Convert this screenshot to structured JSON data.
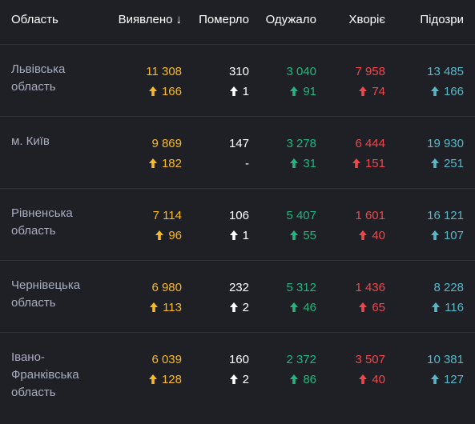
{
  "header": {
    "region": "Область",
    "detected": "Виявлено",
    "died": "Померло",
    "recovered": "Одужало",
    "sick": "Хворіє",
    "suspected": "Підозри"
  },
  "colors": {
    "detected": "#f7b924",
    "died": "#ffffff",
    "recovered": "#25b47e",
    "sick": "#f0474b",
    "suspected": "#58b7c7",
    "background": "#1e2026"
  },
  "rows": [
    {
      "region": "Львівська область",
      "detected": "11 308",
      "detected_delta": "166",
      "died": "310",
      "died_delta": "1",
      "recovered": "3 040",
      "recovered_delta": "91",
      "sick": "7 958",
      "sick_delta": "74",
      "suspected": "13 485",
      "suspected_delta": "166"
    },
    {
      "region": "м. Київ",
      "detected": "9 869",
      "detected_delta": "182",
      "died": "147",
      "died_delta": "-",
      "recovered": "3 278",
      "recovered_delta": "31",
      "sick": "6 444",
      "sick_delta": "151",
      "suspected": "19 930",
      "suspected_delta": "251"
    },
    {
      "region": "Рівненська область",
      "detected": "7 114",
      "detected_delta": "96",
      "died": "106",
      "died_delta": "1",
      "recovered": "5 407",
      "recovered_delta": "55",
      "sick": "1 601",
      "sick_delta": "40",
      "suspected": "16 121",
      "suspected_delta": "107"
    },
    {
      "region": "Чернівецька область",
      "detected": "6 980",
      "detected_delta": "113",
      "died": "232",
      "died_delta": "2",
      "recovered": "5 312",
      "recovered_delta": "46",
      "sick": "1 436",
      "sick_delta": "65",
      "suspected": "8 228",
      "suspected_delta": "116"
    },
    {
      "region": "Івано-Франківська область",
      "detected": "6 039",
      "detected_delta": "128",
      "died": "160",
      "died_delta": "2",
      "recovered": "2 372",
      "recovered_delta": "86",
      "sick": "3 507",
      "sick_delta": "40",
      "suspected": "10 381",
      "suspected_delta": "127"
    }
  ]
}
